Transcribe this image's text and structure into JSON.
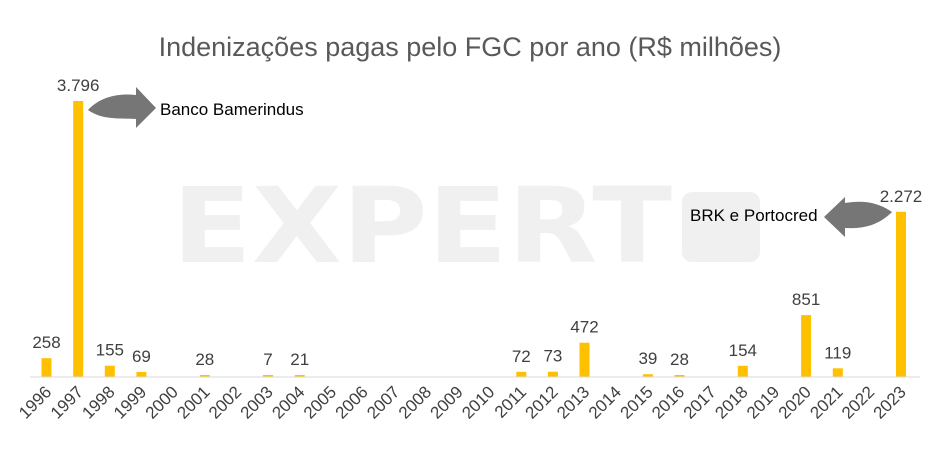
{
  "chart_data": {
    "type": "bar",
    "title": "Indenizações pagas pelo FGC por ano (R$ milhões)",
    "xlabel": "",
    "ylabel": "",
    "categories": [
      "1996",
      "1997",
      "1998",
      "1999",
      "2000",
      "2001",
      "2002",
      "2003",
      "2004",
      "2005",
      "2006",
      "2007",
      "2008",
      "2009",
      "2010",
      "2011",
      "2012",
      "2013",
      "2014",
      "2015",
      "2016",
      "2017",
      "2018",
      "2019",
      "2020",
      "2021",
      "2022",
      "2023"
    ],
    "values": [
      258,
      3796,
      155,
      69,
      0,
      28,
      0,
      7,
      21,
      0,
      0,
      0,
      0,
      0,
      0,
      72,
      73,
      472,
      0,
      39,
      28,
      0,
      154,
      0,
      851,
      119,
      0,
      2272
    ],
    "data_labels": [
      "258",
      "3.796",
      "155",
      "69",
      "",
      "28",
      "",
      "7",
      "21",
      "",
      "",
      "",
      "",
      "",
      "",
      "72",
      "73",
      "472",
      "",
      "39",
      "28",
      "",
      "154",
      "",
      "851",
      "119",
      "",
      "2.272"
    ],
    "ylim": [
      0,
      3796
    ],
    "bar_color": "#FFC000",
    "arrow_color": "#767676",
    "grid": false,
    "legend": "none",
    "annotations": [
      {
        "text": "Banco Bamerindus",
        "category": "1997"
      },
      {
        "text": "BRK e Portocred",
        "category": "2023"
      }
    ],
    "watermark": "EXPERT"
  }
}
